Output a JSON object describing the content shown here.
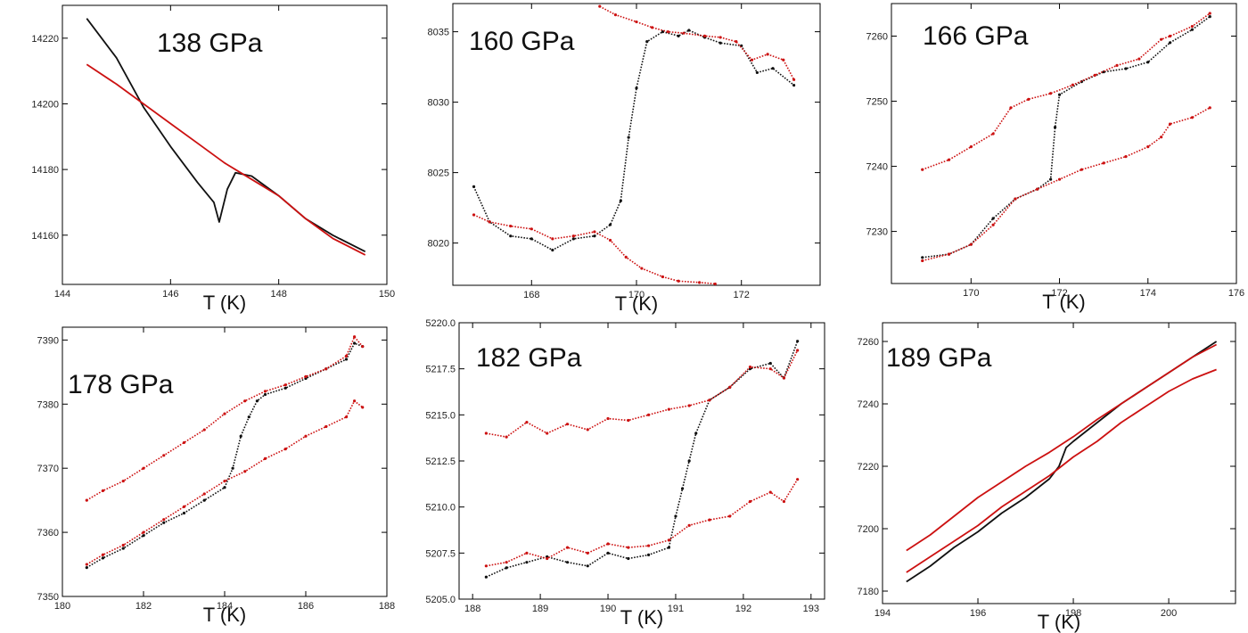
{
  "figure": {
    "title": "",
    "colors": {
      "black_series": "#111111",
      "red_series": "#cc1111",
      "frame": "#000000",
      "background": "#ffffff"
    }
  },
  "chart_data": [
    {
      "type": "line",
      "title": "138 GPa",
      "xlabel": "T (K)",
      "ylabel": "",
      "xlim": [
        144,
        150
      ],
      "ylim": [
        14145,
        14230
      ],
      "xticks": [
        144,
        146,
        148,
        150
      ],
      "yticks": [
        14160,
        14180,
        14200,
        14220
      ],
      "ytick_format": "0",
      "grid": false,
      "series": [
        {
          "color": "#111111",
          "marker": "line",
          "x": [
            144.45,
            145.0,
            145.5,
            146.0,
            146.5,
            146.8,
            146.9,
            147.05,
            147.2,
            147.5,
            148.0,
            148.5,
            149.0,
            149.6
          ],
          "y": [
            14226,
            14214,
            14199,
            14187,
            14176,
            14170,
            14164,
            14174,
            14179,
            14178,
            14172,
            14165,
            14160,
            14155
          ]
        },
        {
          "color": "#cc1111",
          "marker": "line",
          "x": [
            144.45,
            145.0,
            145.5,
            146.0,
            146.5,
            147.0,
            147.5,
            148.0,
            148.5,
            149.0,
            149.6
          ],
          "y": [
            14212,
            14206,
            14200,
            14194,
            14188,
            14182,
            14177,
            14172,
            14165,
            14159,
            14154
          ]
        }
      ]
    },
    {
      "type": "scatter",
      "title": "160 GPa",
      "xlabel": "T (K)",
      "ylabel": "",
      "xlim": [
        166.5,
        173.5
      ],
      "ylim": [
        8017,
        8037
      ],
      "xticks": [
        168,
        170,
        172
      ],
      "yticks": [
        8020,
        8025,
        8030,
        8035
      ],
      "ytick_format": "0",
      "grid": false,
      "series": [
        {
          "color": "#111111",
          "marker": "dot",
          "x": [
            166.9,
            167.2,
            167.6,
            168.0,
            168.4,
            168.8,
            169.2,
            169.5,
            169.7,
            169.85,
            170.0,
            170.2,
            170.5,
            170.8,
            171.0,
            171.3,
            171.6,
            172.0,
            172.3,
            172.6,
            173.0
          ],
          "y": [
            8024,
            8021.5,
            8020.5,
            8020.3,
            8019.5,
            8020.3,
            8020.5,
            8021.3,
            8023.0,
            8027.5,
            8031.0,
            8034.3,
            8035.0,
            8034.7,
            8035.1,
            8034.6,
            8034.2,
            8034.0,
            8032.1,
            8032.4,
            8031.2
          ]
        },
        {
          "color": "#cc1111",
          "marker": "dot",
          "x": [
            166.9,
            167.2,
            167.6,
            168.0,
            168.4,
            168.8,
            169.2,
            169.5,
            169.8,
            170.1,
            170.5,
            170.8,
            171.2,
            171.5
          ],
          "y": [
            8022,
            8021.5,
            8021.2,
            8021.0,
            8020.3,
            8020.5,
            8020.8,
            8020.2,
            8019.0,
            8018.2,
            8017.6,
            8017.3,
            8017.2,
            8017.1
          ]
        },
        {
          "color": "#cc1111",
          "marker": "dot",
          "x": [
            169.3,
            169.6,
            170.0,
            170.3,
            170.6,
            170.9,
            171.3,
            171.6,
            171.9,
            172.2,
            172.5,
            172.8,
            173.0
          ],
          "y": [
            8036.8,
            8036.2,
            8035.7,
            8035.3,
            8035.0,
            8034.9,
            8034.7,
            8034.6,
            8034.3,
            8033.0,
            8033.4,
            8033.0,
            8031.6
          ]
        }
      ]
    },
    {
      "type": "scatter",
      "title": "166 GPa",
      "xlabel": "T (K)",
      "ylabel": "",
      "xlim": [
        168.2,
        176
      ],
      "ylim": [
        7222,
        7265
      ],
      "xticks": [
        170,
        172,
        174,
        176
      ],
      "yticks": [
        7230,
        7240,
        7250,
        7260
      ],
      "ytick_format": "0",
      "grid": false,
      "series": [
        {
          "color": "#111111",
          "marker": "dot",
          "x": [
            168.9,
            169.5,
            170.0,
            170.5,
            171.0,
            171.5,
            171.8,
            171.9,
            172.0,
            172.5,
            173.0,
            173.5,
            174.0,
            174.5,
            175.0,
            175.4
          ],
          "y": [
            7226,
            7226.5,
            7228,
            7232,
            7235,
            7236.5,
            7238,
            7246,
            7251,
            7253,
            7254.5,
            7255,
            7256,
            7259,
            7261,
            7263
          ]
        },
        {
          "color": "#cc1111",
          "marker": "dot",
          "x": [
            168.9,
            169.5,
            170.0,
            170.5,
            170.9,
            171.3,
            171.8,
            172.3,
            172.8,
            173.3,
            173.8,
            174.3,
            174.5,
            175.0,
            175.4
          ],
          "y": [
            7239.5,
            7241,
            7243,
            7245,
            7249,
            7250.3,
            7251.2,
            7252.5,
            7254,
            7255.5,
            7256.5,
            7259.5,
            7260,
            7261.5,
            7263.5
          ]
        },
        {
          "color": "#cc1111",
          "marker": "dot",
          "x": [
            168.9,
            169.5,
            170.0,
            170.5,
            171.0,
            171.5,
            172.0,
            172.5,
            173.0,
            173.5,
            174.0,
            174.3,
            174.5,
            175.0,
            175.4
          ],
          "y": [
            7225.5,
            7226.5,
            7228,
            7231,
            7235,
            7236.5,
            7238,
            7239.5,
            7240.5,
            7241.5,
            7243,
            7244.5,
            7246.5,
            7247.5,
            7249
          ]
        }
      ]
    },
    {
      "type": "scatter",
      "title": "178 GPa",
      "xlabel": "T (K)",
      "ylabel": "",
      "xlim": [
        180,
        188
      ],
      "ylim": [
        7350,
        7392
      ],
      "xticks": [
        180,
        182,
        184,
        186,
        188
      ],
      "yticks": [
        7350,
        7360,
        7370,
        7380,
        7390
      ],
      "ytick_format": "0",
      "grid": false,
      "series": [
        {
          "color": "#111111",
          "marker": "dot",
          "x": [
            180.6,
            181.0,
            181.5,
            182.0,
            182.5,
            183.0,
            183.5,
            184.0,
            184.2,
            184.4,
            184.6,
            184.8,
            185.0,
            185.5,
            186.0,
            186.5,
            187.0,
            187.2,
            187.4
          ],
          "y": [
            7354.5,
            7356,
            7357.5,
            7359.5,
            7361.5,
            7363,
            7365,
            7367,
            7370,
            7375,
            7378,
            7380.5,
            7381.5,
            7382.5,
            7384,
            7385.5,
            7387,
            7389.5,
            7389
          ]
        },
        {
          "color": "#cc1111",
          "marker": "dot",
          "x": [
            180.6,
            181.0,
            181.5,
            182.0,
            182.5,
            183.0,
            183.5,
            184.0,
            184.5,
            185.0,
            185.5,
            186.0,
            186.5,
            187.0,
            187.2,
            187.4
          ],
          "y": [
            7365,
            7366.5,
            7368,
            7370,
            7372,
            7374,
            7376,
            7378.5,
            7380.5,
            7382,
            7383,
            7384.3,
            7385.5,
            7387.5,
            7390.5,
            7389
          ]
        },
        {
          "color": "#cc1111",
          "marker": "dot",
          "x": [
            180.6,
            181.0,
            181.5,
            182.0,
            182.5,
            183.0,
            183.5,
            184.0,
            184.5,
            185.0,
            185.5,
            186.0,
            186.5,
            187.0,
            187.2,
            187.4
          ],
          "y": [
            7355,
            7356.5,
            7358,
            7360,
            7362,
            7364,
            7366,
            7368,
            7369.5,
            7371.5,
            7373,
            7375,
            7376.5,
            7378,
            7380.5,
            7379.5
          ]
        }
      ]
    },
    {
      "type": "scatter",
      "title": "182 GPa",
      "xlabel": "T (K)",
      "ylabel": "",
      "xlim": [
        187.8,
        193.2
      ],
      "ylim": [
        5205,
        5220
      ],
      "xticks": [
        188,
        189,
        190,
        191,
        192,
        193
      ],
      "yticks": [
        5205,
        5207.5,
        5210,
        5212.5,
        5215,
        5217.5,
        5220
      ],
      "ytick_format": "0.0",
      "grid": false,
      "series": [
        {
          "color": "#111111",
          "marker": "dot",
          "x": [
            188.2,
            188.5,
            188.8,
            189.1,
            189.4,
            189.7,
            190.0,
            190.3,
            190.6,
            190.9,
            191.0,
            191.1,
            191.2,
            191.3,
            191.5,
            191.8,
            192.1,
            192.4,
            192.6,
            192.8
          ],
          "y": [
            5206.2,
            5206.7,
            5207.0,
            5207.3,
            5207.0,
            5206.8,
            5207.5,
            5207.2,
            5207.4,
            5207.8,
            5209.5,
            5211.0,
            5212.5,
            5214.0,
            5215.8,
            5216.5,
            5217.5,
            5217.8,
            5217.0,
            5219.0
          ]
        },
        {
          "color": "#cc1111",
          "marker": "dot",
          "x": [
            188.2,
            188.5,
            188.8,
            189.1,
            189.4,
            189.7,
            190.0,
            190.3,
            190.6,
            190.9,
            191.2,
            191.5,
            191.8,
            192.1,
            192.4,
            192.6,
            192.8
          ],
          "y": [
            5214.0,
            5213.8,
            5214.6,
            5214.0,
            5214.5,
            5214.2,
            5214.8,
            5214.7,
            5215.0,
            5215.3,
            5215.5,
            5215.8,
            5216.5,
            5217.6,
            5217.5,
            5217.0,
            5218.5
          ]
        },
        {
          "color": "#cc1111",
          "marker": "dot",
          "x": [
            188.2,
            188.5,
            188.8,
            189.1,
            189.4,
            189.7,
            190.0,
            190.3,
            190.6,
            190.9,
            191.2,
            191.5,
            191.8,
            192.1,
            192.4,
            192.6,
            192.8
          ],
          "y": [
            5206.8,
            5207.0,
            5207.5,
            5207.2,
            5207.8,
            5207.5,
            5208.0,
            5207.8,
            5207.9,
            5208.2,
            5209.0,
            5209.3,
            5209.5,
            5210.3,
            5210.8,
            5210.3,
            5211.5
          ]
        }
      ]
    },
    {
      "type": "line",
      "title": "189 GPa",
      "xlabel": "T (K)",
      "ylabel": "",
      "xlim": [
        194,
        201.4
      ],
      "ylim": [
        7176,
        7266
      ],
      "xticks": [
        194,
        196,
        198,
        200
      ],
      "yticks": [
        7180,
        7200,
        7220,
        7240,
        7260
      ],
      "ytick_format": "0",
      "grid": false,
      "series": [
        {
          "color": "#111111",
          "marker": "line",
          "x": [
            194.5,
            195.0,
            195.5,
            196.0,
            196.5,
            197.0,
            197.5,
            197.7,
            197.85,
            198.0,
            198.5,
            199.0,
            199.5,
            200.0,
            200.5,
            201.0
          ],
          "y": [
            7183,
            7188,
            7194,
            7199,
            7205,
            7210,
            7216,
            7220,
            7226,
            7228,
            7234,
            7240,
            7245,
            7250,
            7255,
            7260
          ]
        },
        {
          "color": "#cc1111",
          "marker": "line",
          "x": [
            194.5,
            195.0,
            195.5,
            196.0,
            196.5,
            197.0,
            197.5,
            198.0,
            198.5,
            199.0,
            199.5,
            200.0,
            200.5,
            201.0
          ],
          "y": [
            7193,
            7198,
            7204,
            7210,
            7215,
            7220,
            7224.5,
            7229.5,
            7235,
            7240,
            7245,
            7250,
            7255,
            7259
          ]
        },
        {
          "color": "#cc1111",
          "marker": "line",
          "x": [
            194.5,
            195.0,
            195.5,
            196.0,
            196.5,
            197.0,
            197.5,
            198.0,
            198.5,
            199.0,
            199.5,
            200.0,
            200.5,
            201.0
          ],
          "y": [
            7186,
            7191,
            7196,
            7201,
            7207,
            7212,
            7217,
            7223,
            7228,
            7234,
            7239,
            7244,
            7248,
            7251
          ]
        }
      ]
    }
  ]
}
